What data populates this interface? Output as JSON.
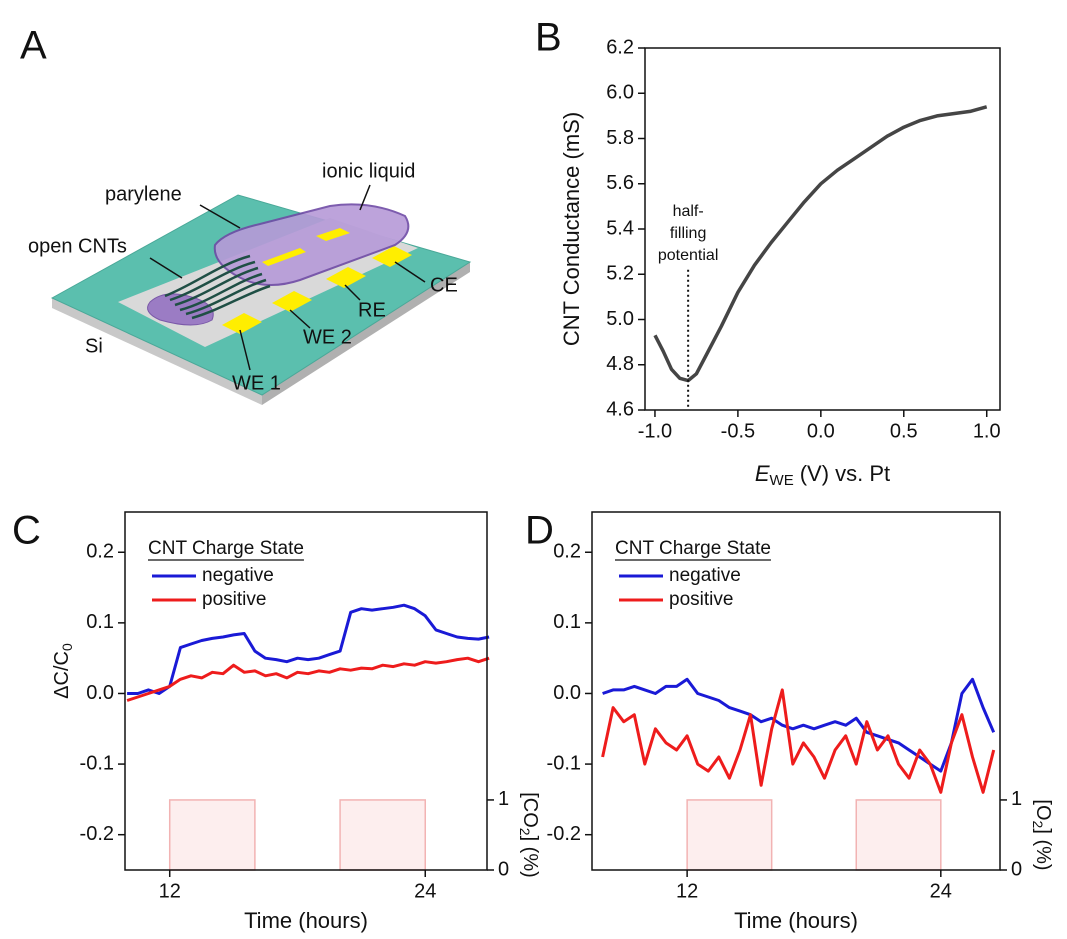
{
  "diagram": {
    "panel": "A",
    "labels": {
      "parylene": "parylene",
      "ionic_liquid": "ionic liquid",
      "open_cnts": "open CNTs",
      "si": "Si",
      "we1": "WE 1",
      "we2": "WE 2",
      "re": "RE",
      "ce": "CE"
    }
  },
  "chart_data": [
    {
      "type": "line",
      "panel": "B",
      "xlabel": {
        "symbol": "E",
        "subscript": "WE",
        "text": "(V) vs. Pt"
      },
      "ylabel": "CNT Conductance (mS)",
      "x": [
        -1.0,
        -0.95,
        -0.9,
        -0.85,
        -0.8,
        -0.75,
        -0.7,
        -0.6,
        -0.5,
        -0.4,
        -0.3,
        -0.2,
        -0.1,
        0.0,
        0.1,
        0.2,
        0.3,
        0.4,
        0.5,
        0.6,
        0.7,
        0.8,
        0.9,
        1.0
      ],
      "values": [
        4.93,
        4.86,
        4.78,
        4.74,
        4.73,
        4.76,
        4.83,
        4.97,
        5.12,
        5.24,
        5.34,
        5.43,
        5.52,
        5.6,
        5.66,
        5.71,
        5.76,
        5.81,
        5.85,
        5.88,
        5.9,
        5.91,
        5.92,
        5.94
      ],
      "color": "#454545",
      "xlim": [
        -1.06,
        1.08
      ],
      "xticks": [
        {
          "value": -1.0,
          "label": "-1.0"
        },
        -0.5,
        {
          "value": 0.0,
          "label": "0.0"
        },
        0.5,
        {
          "value": 1.0,
          "label": "1.0"
        }
      ],
      "ylim": [
        4.6,
        6.2
      ],
      "yticks": [
        4.6,
        4.8,
        {
          "value": 5.0,
          "label": "5.0"
        },
        5.2,
        5.4,
        5.6,
        5.8,
        {
          "value": 6.0,
          "label": "6.0"
        },
        6.2
      ],
      "annotation": {
        "lines": [
          "half-",
          "filling",
          "potential"
        ],
        "x": -0.8,
        "y": 5.22
      }
    },
    {
      "type": "line",
      "panel": "C",
      "xlabel": "Time (hours)",
      "ylabel": {
        "text": "ΔC/C",
        "subscript": "0"
      },
      "y2label": {
        "before": "[CO",
        "subscript": "2",
        "after": "] (%)"
      },
      "legend_title": "CNT Charge State",
      "x": [
        10,
        10.5,
        11,
        11.5,
        12,
        12.5,
        13,
        13.5,
        14,
        14.5,
        15,
        15.5,
        16,
        16.5,
        17,
        17.5,
        18,
        18.5,
        19,
        19.5,
        20,
        20.5,
        21,
        21.5,
        22,
        22.5,
        23,
        23.5,
        24,
        24.5,
        25,
        25.5,
        26,
        26.5,
        27
      ],
      "series": [
        {
          "name": "negative",
          "color": "#1a1ad6",
          "values": [
            0.0,
            0.0,
            0.005,
            0.0,
            0.01,
            0.065,
            0.07,
            0.075,
            0.078,
            0.08,
            0.083,
            0.085,
            0.06,
            0.05,
            0.048,
            0.045,
            0.05,
            0.048,
            0.05,
            0.055,
            0.06,
            0.115,
            0.12,
            0.118,
            0.12,
            0.122,
            0.125,
            0.12,
            0.11,
            0.09,
            0.085,
            0.08,
            0.078,
            0.077,
            0.08
          ]
        },
        {
          "name": "positive",
          "color": "#ee1c1c",
          "values": [
            -0.01,
            -0.005,
            0.0,
            0.005,
            0.01,
            0.02,
            0.025,
            0.022,
            0.03,
            0.028,
            0.04,
            0.03,
            0.032,
            0.025,
            0.028,
            0.022,
            0.03,
            0.028,
            0.032,
            0.03,
            0.035,
            0.033,
            0.036,
            0.035,
            0.04,
            0.038,
            0.042,
            0.04,
            0.045,
            0.043,
            0.045,
            0.048,
            0.05,
            0.045,
            0.05
          ]
        }
      ],
      "xlim": [
        9.9,
        26.9
      ],
      "xticks": [
        12,
        24
      ],
      "ylim": [
        -0.25,
        0.257
      ],
      "yticks": [
        -0.2,
        -0.1,
        {
          "value": 0.0,
          "label": "0.0"
        },
        0.1,
        0.2
      ],
      "y2lim": [
        0,
        5.11
      ],
      "y2ticks": [
        0,
        1
      ],
      "pulses": {
        "intervals": [
          [
            12,
            16
          ],
          [
            20,
            24
          ]
        ],
        "level": 1,
        "axis": "y2",
        "color": "#fdeeee"
      }
    },
    {
      "type": "line",
      "panel": "D",
      "xlabel": "Time (hours)",
      "y2label": {
        "before": "[O",
        "subscript": "2",
        "after": "] (%)"
      },
      "legend_title": "CNT Charge State",
      "x": [
        8,
        8.5,
        9,
        9.5,
        10,
        10.5,
        11,
        11.5,
        12,
        12.5,
        13,
        13.5,
        14,
        14.5,
        15,
        15.5,
        16,
        16.5,
        17,
        17.5,
        18,
        18.5,
        19,
        19.5,
        20,
        20.5,
        21,
        21.5,
        22,
        22.5,
        23,
        23.5,
        24,
        24.5,
        25,
        25.5,
        26,
        26.5
      ],
      "series": [
        {
          "name": "negative",
          "color": "#1a1ad6",
          "values": [
            0.0,
            0.005,
            0.005,
            0.01,
            0.005,
            0.0,
            0.01,
            0.01,
            0.02,
            0.0,
            -0.005,
            -0.01,
            -0.02,
            -0.025,
            -0.03,
            -0.04,
            -0.035,
            -0.045,
            -0.05,
            -0.045,
            -0.05,
            -0.045,
            -0.04,
            -0.045,
            -0.035,
            -0.055,
            -0.06,
            -0.065,
            -0.07,
            -0.08,
            -0.09,
            -0.1,
            -0.11,
            -0.07,
            0.0,
            0.02,
            -0.02,
            -0.055
          ]
        },
        {
          "name": "positive",
          "color": "#ee1c1c",
          "values": [
            -0.09,
            -0.02,
            -0.04,
            -0.03,
            -0.1,
            -0.05,
            -0.07,
            -0.08,
            -0.06,
            -0.1,
            -0.11,
            -0.09,
            -0.12,
            -0.08,
            -0.03,
            -0.13,
            -0.05,
            0.005,
            -0.1,
            -0.07,
            -0.09,
            -0.12,
            -0.08,
            -0.06,
            -0.1,
            -0.04,
            -0.08,
            -0.06,
            -0.1,
            -0.12,
            -0.08,
            -0.1,
            -0.14,
            -0.07,
            -0.03,
            -0.09,
            -0.14,
            -0.08
          ]
        }
      ],
      "xlim": [
        7.5,
        26.8
      ],
      "xticks": [
        12,
        24
      ],
      "ylim": [
        -0.25,
        0.257
      ],
      "yticks": [
        -0.2,
        -0.1,
        {
          "value": 0.0,
          "label": "0.0"
        },
        0.1,
        0.2
      ],
      "y2lim": [
        0,
        5.11
      ],
      "y2ticks": [
        0,
        1
      ],
      "pulses": {
        "intervals": [
          [
            12,
            16
          ],
          [
            20,
            24
          ]
        ],
        "level": 1,
        "axis": "y2",
        "color": "#fdeeee"
      }
    }
  ]
}
